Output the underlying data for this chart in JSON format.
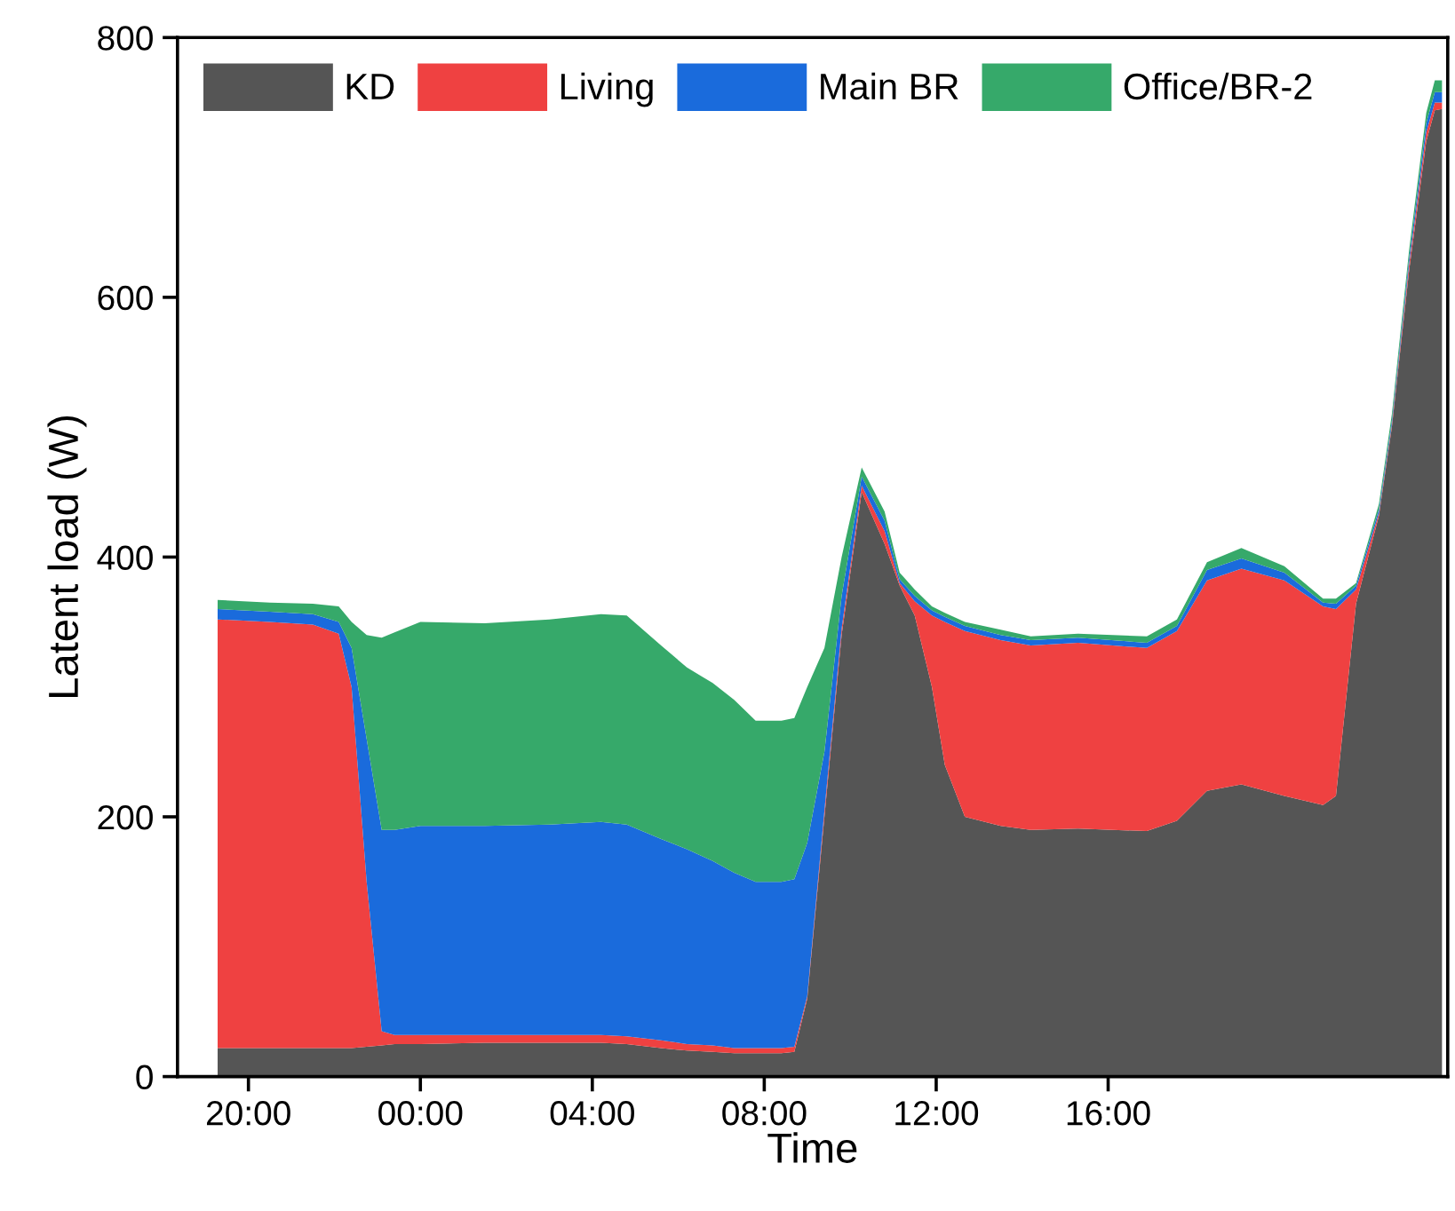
{
  "chart_data": {
    "type": "area",
    "stacked": true,
    "xlabel": "Time",
    "ylabel": "Latent load (W)",
    "x": [
      "2000-01-01T19:17",
      "2000-01-01T20:30",
      "2000-01-01T21:30",
      "2000-01-01T22:06",
      "2000-01-01T22:24",
      "2000-01-01T22:45",
      "2000-01-01T23:06",
      "2000-01-01T23:24",
      "2000-01-02T00:00",
      "2000-01-02T01:30",
      "2000-01-02T03:00",
      "2000-01-02T04:12",
      "2000-01-02T04:48",
      "2000-01-02T05:36",
      "2000-01-02T06:12",
      "2000-01-02T06:48",
      "2000-01-02T07:18",
      "2000-01-02T07:48",
      "2000-01-02T08:24",
      "2000-01-02T08:42",
      "2000-01-02T09:00",
      "2000-01-02T09:24",
      "2000-01-02T09:48",
      "2000-01-02T10:16",
      "2000-01-02T10:48",
      "2000-01-02T11:09",
      "2000-01-02T11:30",
      "2000-01-02T11:54",
      "2000-01-02T12:12",
      "2000-01-02T12:40",
      "2000-01-02T13:30",
      "2000-01-02T14:12",
      "2000-01-02T15:18",
      "2000-01-02T16:54",
      "2000-01-02T17:36",
      "2000-01-02T18:18",
      "2000-01-02T19:06",
      "2000-01-02T20:06",
      "2000-01-02T21:00",
      "2000-01-02T21:18",
      "2000-01-02T21:46",
      "2000-01-02T22:18",
      "2000-01-02T22:36",
      "2000-01-02T23:00",
      "2000-01-02T23:24",
      "2000-01-02T23:36",
      "2000-01-02T23:46"
    ],
    "series": [
      {
        "name": "KD",
        "color": "#555555",
        "values": [
          22,
          22,
          22,
          22,
          22,
          23,
          24,
          25,
          25,
          26,
          26,
          26,
          25,
          22,
          20,
          19,
          18,
          18,
          18,
          19,
          60,
          200,
          340,
          450,
          410,
          378,
          355,
          300,
          240,
          200,
          193,
          190,
          191,
          189,
          197,
          220,
          225,
          216,
          209,
          216,
          364,
          432,
          500,
          620,
          720,
          744,
          745
        ]
      },
      {
        "name": "Living",
        "color": "#ef4141",
        "values": [
          330,
          328,
          326,
          319,
          278,
          127,
          11,
          7,
          7,
          6,
          6,
          6,
          6,
          6,
          5,
          5,
          4,
          4,
          4,
          4,
          2,
          5,
          5,
          5,
          10,
          2,
          11,
          55,
          110,
          143,
          143,
          142,
          143,
          141,
          146,
          162,
          166,
          166,
          153,
          144,
          11,
          2,
          2,
          5,
          7,
          6,
          5
        ]
      },
      {
        "name": "Main BR",
        "color": "#1a6bdc",
        "values": [
          8,
          8,
          8,
          9,
          30,
          110,
          155,
          158,
          161,
          161,
          162,
          164,
          163,
          155,
          150,
          142,
          135,
          128,
          128,
          129,
          118,
          45,
          25,
          7,
          8,
          3,
          4,
          4,
          4,
          4,
          4,
          4,
          4,
          4,
          4,
          8,
          8,
          6,
          3,
          4,
          3,
          3,
          3,
          5,
          7,
          8,
          8
        ]
      },
      {
        "name": "Office/BR-2",
        "color": "#36a96a",
        "values": [
          7,
          7,
          8,
          12,
          20,
          80,
          148,
          152,
          157,
          156,
          158,
          160,
          161,
          149,
          140,
          137,
          133,
          124,
          124,
          124,
          120,
          80,
          30,
          7,
          7,
          5,
          5,
          3,
          3,
          3,
          4,
          3,
          3,
          5,
          5,
          6,
          8,
          5,
          3,
          4,
          2,
          4,
          5,
          6,
          8,
          9,
          9
        ]
      }
    ],
    "xlim": [
      "2000-01-01T18:21",
      "2000-01-02T23:54"
    ],
    "xticks": [
      {
        "value": "2000-01-01T20:00",
        "label": "20:00"
      },
      {
        "value": "2000-01-02T00:00",
        "label": "00:00"
      },
      {
        "value": "2000-01-02T04:00",
        "label": "04:00"
      },
      {
        "value": "2000-01-02T08:00",
        "label": "08:00"
      },
      {
        "value": "2000-01-02T12:00",
        "label": "12:00"
      },
      {
        "value": "2000-01-02T16:00",
        "label": "16:00"
      }
    ],
    "ylim": [
      0,
      800
    ],
    "yticks": [
      0,
      200,
      400,
      600,
      800
    ],
    "grid": false,
    "legend": "top left"
  }
}
